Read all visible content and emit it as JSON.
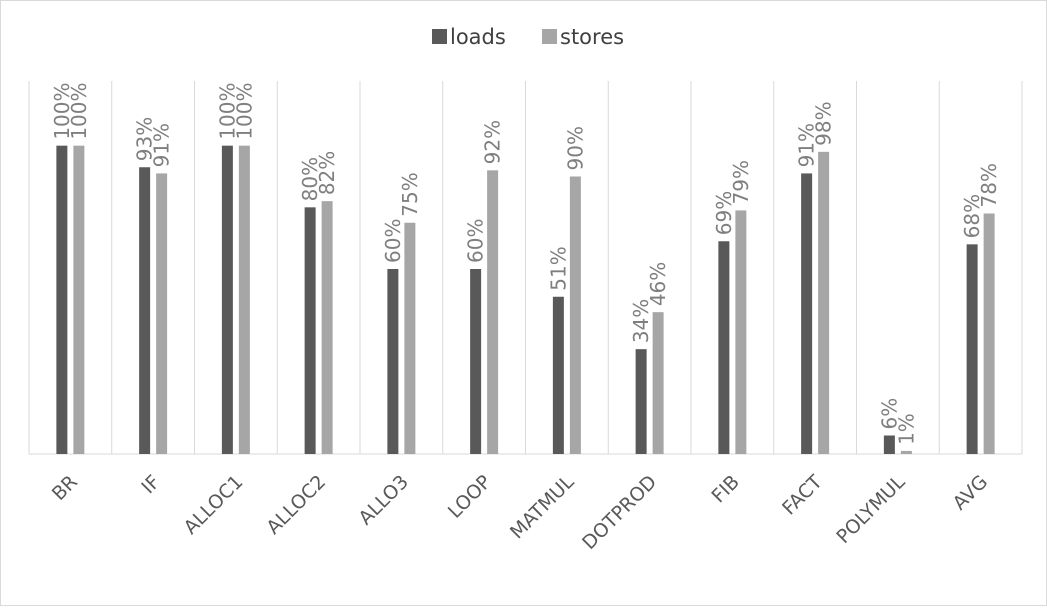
{
  "chart_data": {
    "type": "bar",
    "title": "",
    "xlabel": "",
    "ylabel": "",
    "ylim": [
      0,
      120
    ],
    "grid": "vertical category separators",
    "legend": "top-center",
    "categories": [
      "BR",
      "IF",
      "ALLOC1",
      "ALLOC2",
      "ALLO3",
      "LOOP",
      "MATMUL",
      "DOTPROD",
      "FIB",
      "FACT",
      "POLYMUL",
      "AVG"
    ],
    "series": [
      {
        "name": "loads",
        "color": "#595959",
        "values": [
          100,
          93,
          100,
          80,
          60,
          60,
          51,
          34,
          69,
          91,
          6,
          68
        ],
        "labels": [
          "100%",
          "93%",
          "100%",
          "80%",
          "60%",
          "60%",
          "51%",
          "34%",
          "69%",
          "91%",
          "6%",
          "68%"
        ]
      },
      {
        "name": "stores",
        "color": "#a6a6a6",
        "values": [
          100,
          91,
          100,
          82,
          75,
          92,
          90,
          46,
          79,
          98,
          1,
          78
        ],
        "labels": [
          "100%",
          "91%",
          "100%",
          "82%",
          "75%",
          "92%",
          "90%",
          "46%",
          "79%",
          "98%",
          "1%",
          "78%"
        ]
      }
    ]
  }
}
